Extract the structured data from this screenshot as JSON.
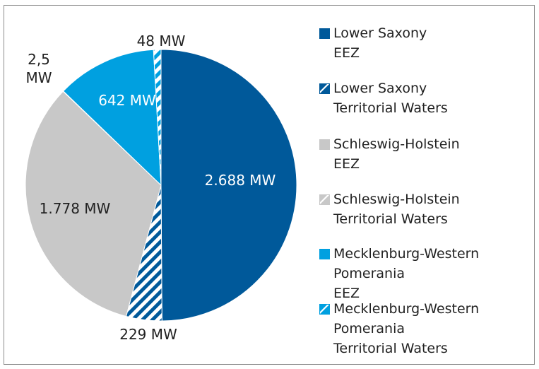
{
  "chart_data": {
    "type": "pie",
    "categories": [
      "Lower Saxony\nEEZ",
      "Lower Saxony\nTerritorial Waters",
      "Schleswig-Holstein\nEEZ",
      "Schleswig-Holstein\nTerritorial Waters",
      "Mecklenburg-Western\nPomerania\nEEZ",
      "Mecklenburg-Western\nPomerania\nTerritorial Waters"
    ],
    "values": [
      2688,
      229,
      1778,
      2.5,
      642,
      48
    ],
    "value_labels": [
      "2.688 MW",
      "229 MW",
      "1.778 MW",
      "2,5 MW",
      "642 MW",
      "48 MW"
    ],
    "colors": [
      "#00599a",
      "#00599a",
      "#c8c8c8",
      "#c8c8c8",
      "#00a0e0",
      "#00a0e0"
    ],
    "hatched": [
      false,
      true,
      false,
      true,
      false,
      true
    ],
    "legend": "right"
  }
}
